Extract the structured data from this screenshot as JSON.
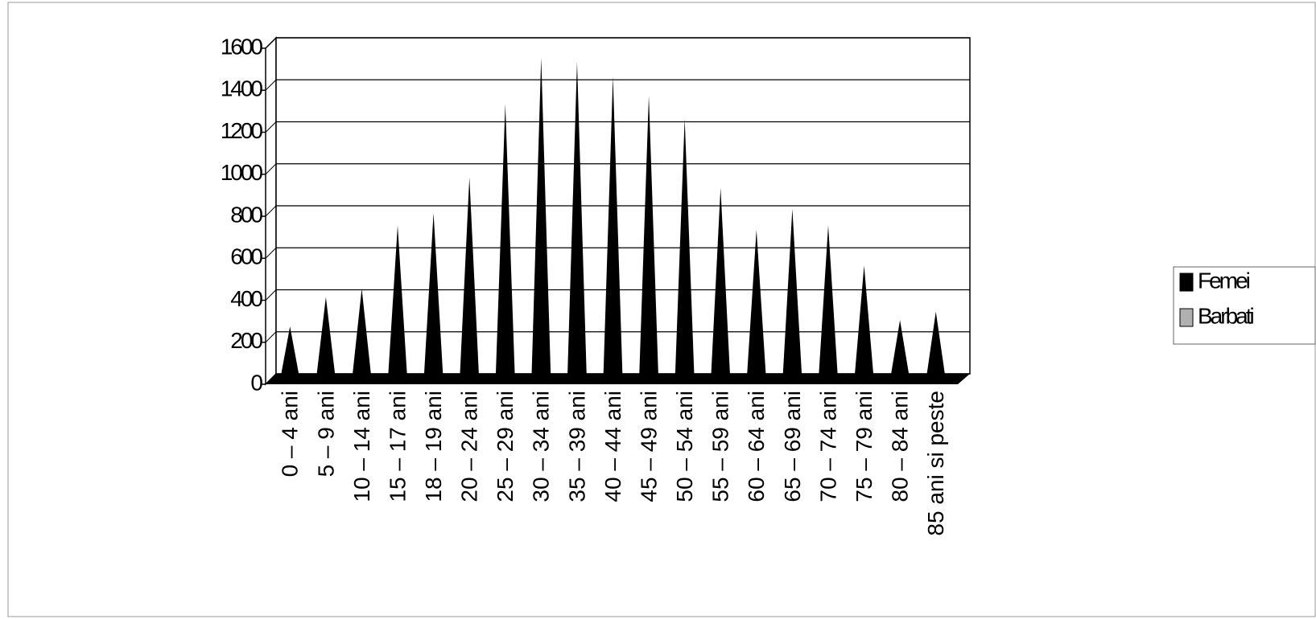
{
  "chart_data": {
    "type": "cone",
    "categories": [
      "0 – 4 ani",
      "5 – 9 ani",
      "10 – 14 ani",
      "15 – 17 ani",
      "18 – 19 ani",
      "20 – 24 ani",
      "25 – 29 ani",
      "30 – 34 ani",
      "35 – 39 ani",
      "40 – 44 ani",
      "45 – 49 ani",
      "50 – 54 ani",
      "55 – 59 ani",
      "60 – 64 ani",
      "65 – 69 ani",
      "70 – 74 ani",
      "75 – 79 ani",
      "80 – 84 ani",
      "85 ani si peste"
    ],
    "series": [
      {
        "name": "Femei",
        "color": "#000000",
        "values": [
          260,
          400,
          440,
          740,
          800,
          970,
          1320,
          1540,
          1520,
          1450,
          1360,
          1250,
          920,
          720,
          820,
          740,
          550,
          290,
          330
        ]
      },
      {
        "name": "Barbati",
        "color": "#b0b0b0",
        "values": [
          null,
          null,
          null,
          null,
          null,
          null,
          null,
          null,
          null,
          null,
          null,
          null,
          null,
          null,
          null,
          null,
          null,
          null,
          null
        ]
      }
    ],
    "ylim": [
      0,
      1600
    ],
    "yticks": [
      0,
      200,
      400,
      600,
      800,
      1000,
      1200,
      1400,
      1600
    ],
    "grid": true,
    "legend": "right"
  }
}
